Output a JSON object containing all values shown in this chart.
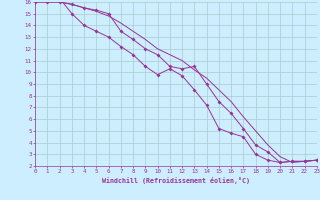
{
  "xlabel": "Windchill (Refroidissement éolien,°C)",
  "bg_color": "#cceeff",
  "grid_color": "#aacccc",
  "line_color": "#993399",
  "xmin": 0,
  "xmax": 23,
  "ymin": 2,
  "ymax": 16,
  "line1_x": [
    0,
    1,
    2,
    3,
    4,
    5,
    6,
    7,
    8,
    9,
    10,
    11,
    12,
    13,
    14,
    15,
    16,
    17,
    18,
    19,
    20,
    21,
    22,
    23
  ],
  "line1_y": [
    16.0,
    16.3,
    16.3,
    15.0,
    14.0,
    13.5,
    13.0,
    12.2,
    11.5,
    10.5,
    9.8,
    10.3,
    9.7,
    8.5,
    7.2,
    5.2,
    4.8,
    4.5,
    3.0,
    2.5,
    2.3,
    2.4,
    2.4,
    2.5
  ],
  "line1_markers": [
    0,
    1,
    2,
    3,
    4,
    5,
    6,
    7,
    8,
    9,
    10,
    11,
    12,
    13,
    14,
    15,
    16,
    17,
    18,
    19,
    20,
    21,
    22,
    23
  ],
  "line2_x": [
    0,
    1,
    2,
    3,
    4,
    5,
    6,
    7,
    8,
    9,
    10,
    11,
    12,
    13,
    14,
    15,
    16,
    17,
    18,
    19,
    20,
    21,
    22,
    23
  ],
  "line2_y": [
    16.0,
    16.0,
    16.0,
    15.8,
    15.5,
    15.3,
    15.0,
    13.5,
    12.8,
    12.0,
    11.5,
    10.5,
    10.3,
    10.5,
    9.0,
    7.5,
    6.5,
    5.2,
    3.8,
    3.2,
    2.3,
    2.4,
    2.4,
    2.5
  ],
  "line2_markers": [
    0,
    1,
    2,
    3,
    4,
    5,
    6,
    7,
    8,
    9,
    10,
    11,
    12,
    13,
    14,
    15,
    16,
    17,
    18,
    19,
    20,
    21,
    22,
    23
  ],
  "line3_x": [
    0,
    1,
    2,
    3,
    4,
    5,
    6,
    7,
    8,
    9,
    10,
    11,
    12,
    13,
    14,
    15,
    16,
    17,
    18,
    19,
    20,
    21,
    22,
    23
  ],
  "line3_y": [
    16.0,
    16.0,
    16.0,
    15.8,
    15.5,
    15.2,
    14.8,
    14.2,
    13.5,
    12.8,
    12.0,
    11.5,
    11.0,
    10.2,
    9.5,
    8.5,
    7.5,
    6.2,
    5.0,
    3.8,
    2.8,
    2.3,
    2.4,
    2.5
  ]
}
